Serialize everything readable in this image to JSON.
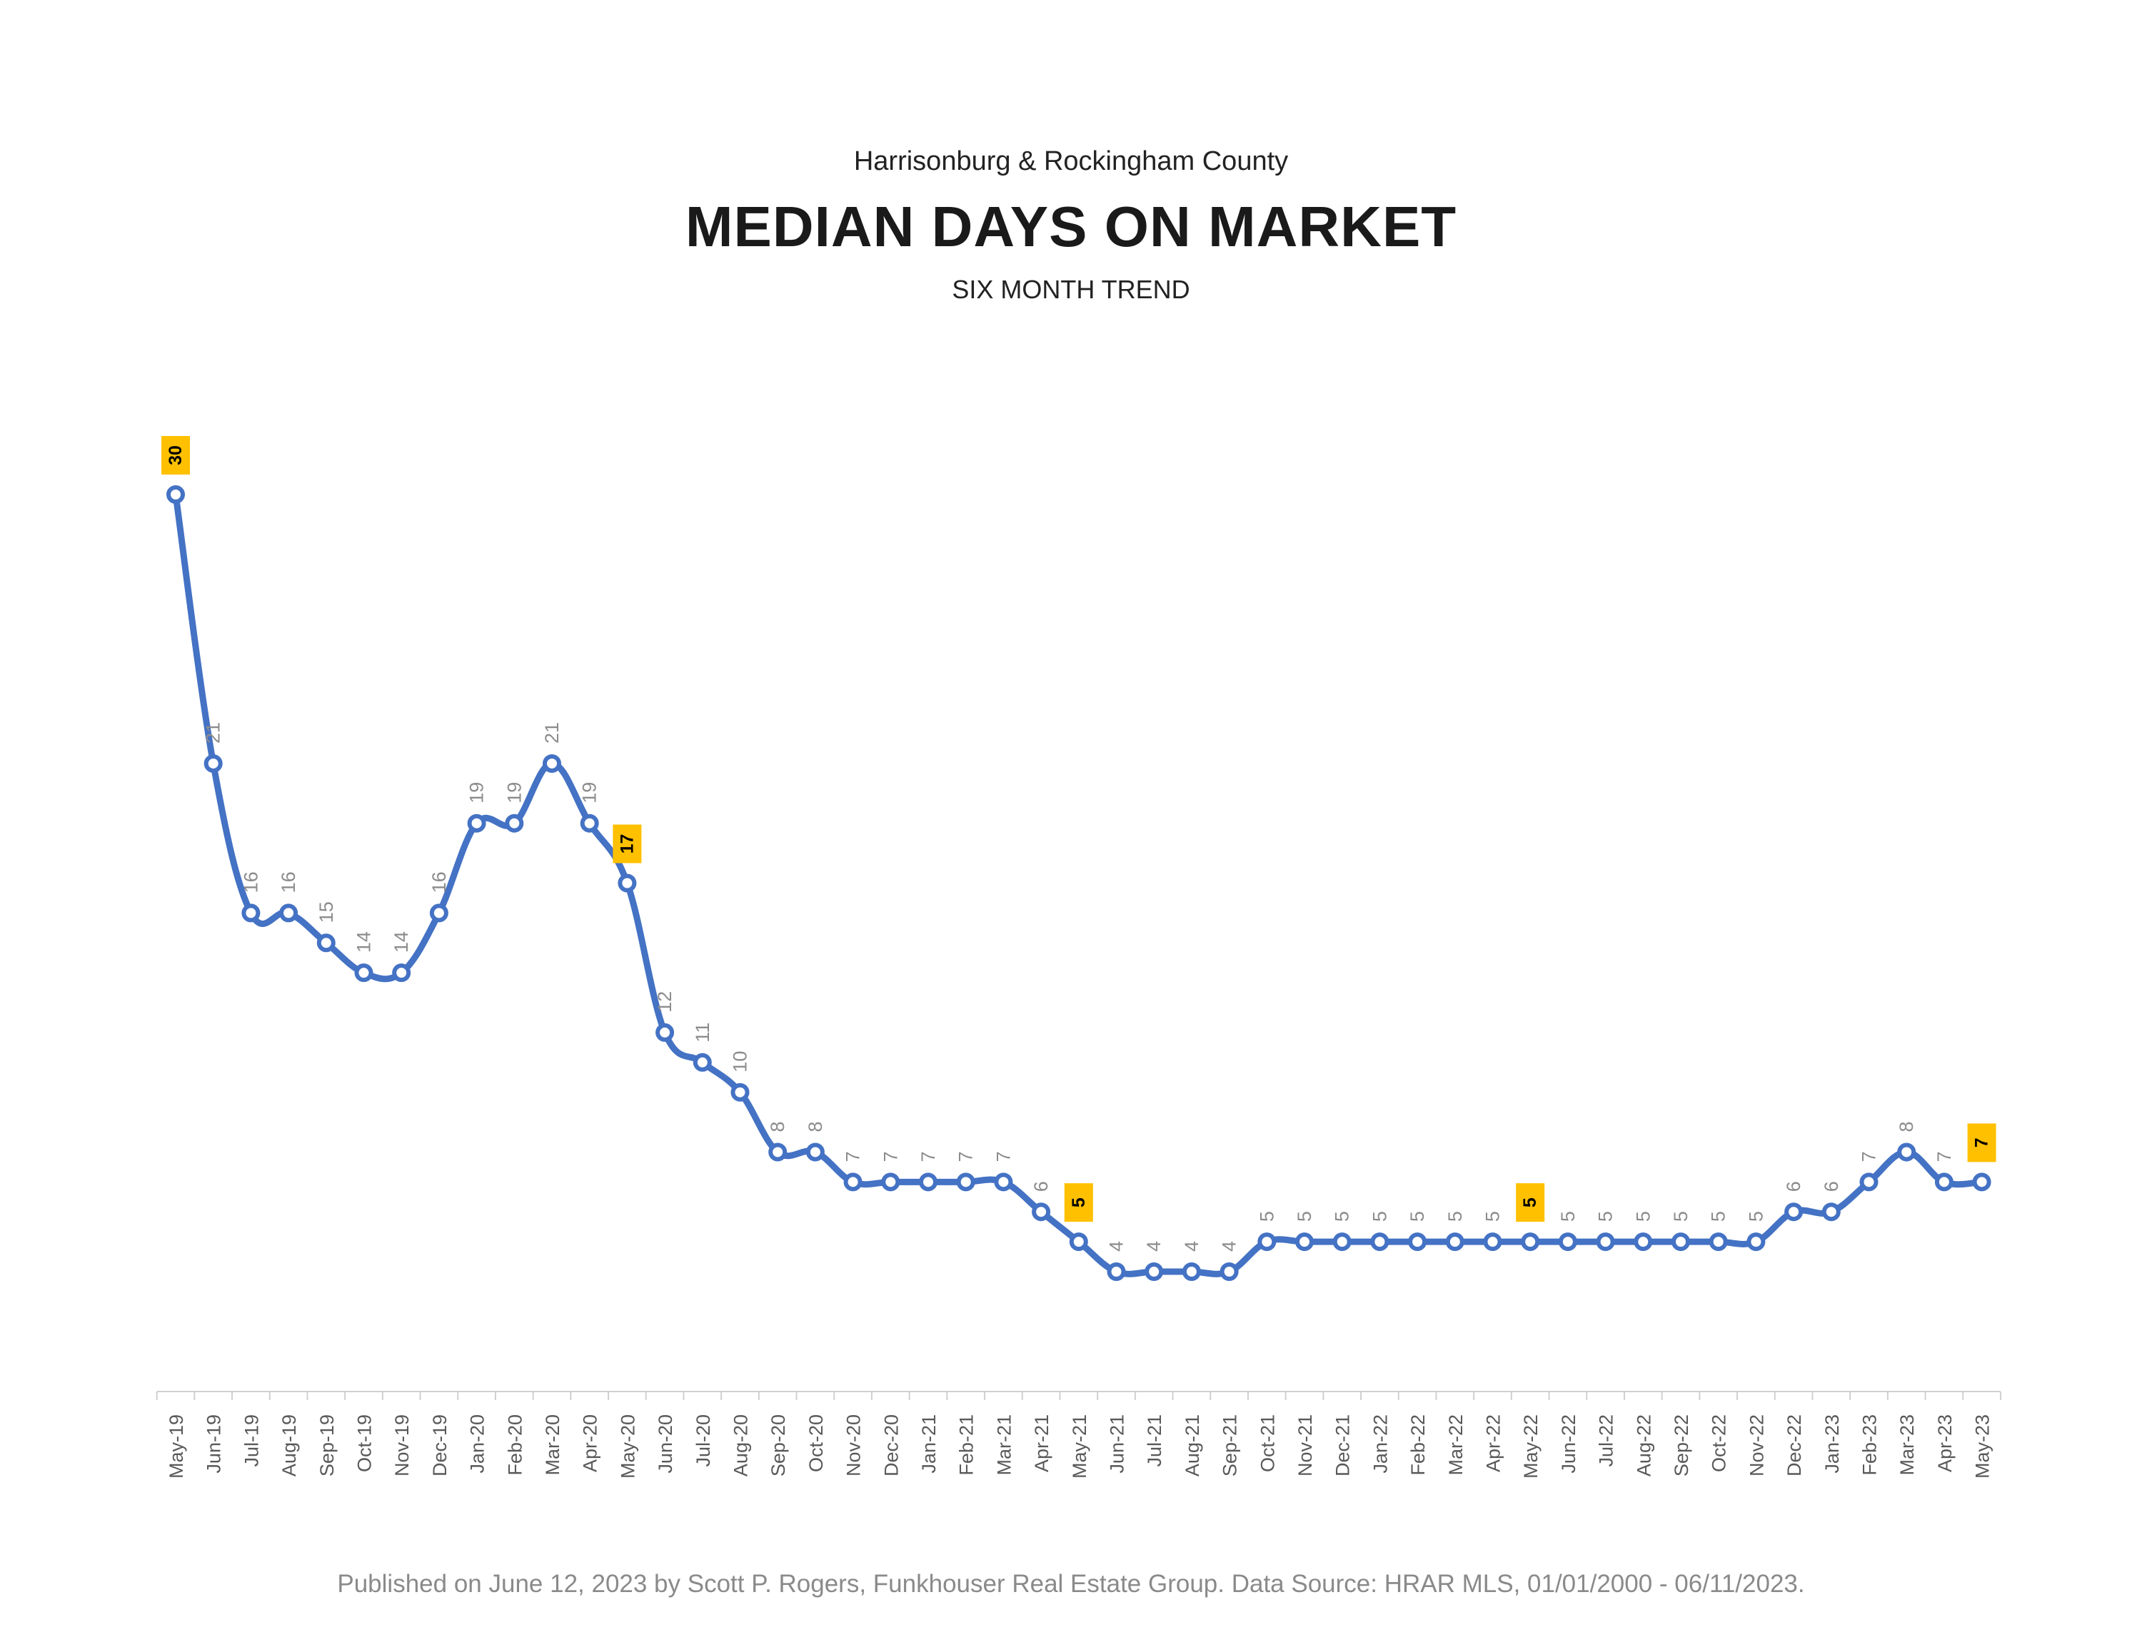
{
  "header": {
    "region": "Harrisonburg & Rockingham County",
    "title": "MEDIAN DAYS ON MARKET",
    "subtitle": "SIX MONTH TREND"
  },
  "footer": {
    "note": "Published on June 12, 2023 by Scott P. Rogers, Funkhouser Real Estate Group. Data Source: HRAR MLS, 01/01/2000 - 06/11/2023."
  },
  "colors": {
    "line": "#4472C4",
    "highlight": "#FFC000",
    "data_label": "#8c8c8c",
    "axis": "#d0d0d0",
    "tick_label": "#595959"
  },
  "chart_data": {
    "type": "line",
    "title": "MEDIAN DAYS ON MARKET",
    "xlabel": "",
    "ylabel": "",
    "grid": false,
    "legend": "none",
    "ylim": [
      0,
      30
    ],
    "categories": [
      "May-19",
      "Jun-19",
      "Jul-19",
      "Aug-19",
      "Sep-19",
      "Oct-19",
      "Nov-19",
      "Dec-19",
      "Jan-20",
      "Feb-20",
      "Mar-20",
      "Apr-20",
      "May-20",
      "Jun-20",
      "Jul-20",
      "Aug-20",
      "Sep-20",
      "Oct-20",
      "Nov-20",
      "Dec-20",
      "Jan-21",
      "Feb-21",
      "Mar-21",
      "Apr-21",
      "May-21",
      "Jun-21",
      "Jul-21",
      "Aug-21",
      "Sep-21",
      "Oct-21",
      "Nov-21",
      "Dec-21",
      "Jan-22",
      "Feb-22",
      "Mar-22",
      "Apr-22",
      "May-22",
      "Jun-22",
      "Jul-22",
      "Aug-22",
      "Sep-22",
      "Oct-22",
      "Nov-22",
      "Dec-22",
      "Jan-23",
      "Feb-23",
      "Mar-23",
      "Apr-23",
      "May-23"
    ],
    "series": [
      {
        "values": [
          30,
          21,
          16,
          16,
          15,
          14,
          14,
          16,
          19,
          19,
          21,
          19,
          17,
          12,
          11,
          10,
          8,
          8,
          7,
          7,
          7,
          7,
          7,
          6,
          5,
          4,
          4,
          4,
          4,
          5,
          5,
          5,
          5,
          5,
          5,
          5,
          5,
          5,
          5,
          5,
          5,
          5,
          5,
          6,
          6,
          7,
          8,
          7,
          7
        ],
        "highlighted": [
          "May-19",
          "May-20",
          "May-21",
          "May-22",
          "May-23"
        ]
      }
    ]
  }
}
